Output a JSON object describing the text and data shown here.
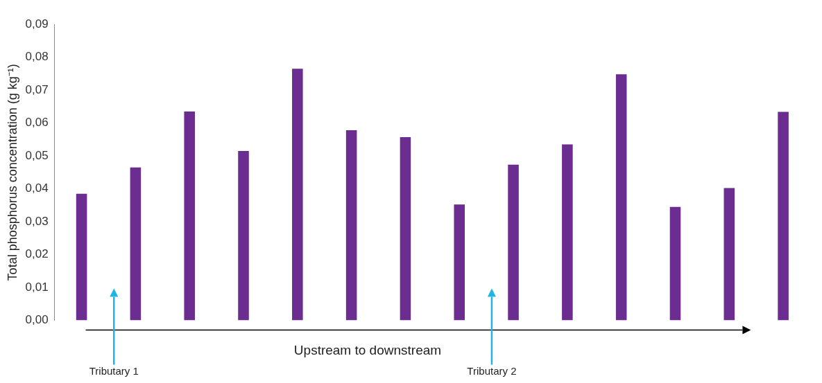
{
  "chart_data": {
    "type": "bar",
    "xlabel": "Upstream to downstream",
    "ylabel": "Total phosphorus concentration (g kg⁻¹)",
    "categories": [
      null,
      null,
      null,
      null,
      null,
      null,
      null,
      null,
      null,
      null,
      null,
      null,
      null,
      null
    ],
    "values": [
      0.0385,
      0.0465,
      0.0635,
      0.0515,
      0.0765,
      0.0578,
      0.0557,
      0.0352,
      0.0473,
      0.0535,
      0.0748,
      0.0345,
      0.0402,
      0.0634
    ],
    "color": "#6b2d8f",
    "ylim": [
      0,
      0.09
    ],
    "yticks": [
      {
        "value": 0,
        "label": "0,00"
      },
      {
        "value": 0.01,
        "label": "0,01"
      },
      {
        "value": 0.02,
        "label": "0,02"
      },
      {
        "value": 0.03,
        "label": "0,03"
      },
      {
        "value": 0.04,
        "label": "0,04"
      },
      {
        "value": 0.05,
        "label": "0,05"
      },
      {
        "value": 0.06,
        "label": "0,06"
      },
      {
        "value": 0.07,
        "label": "0,07"
      },
      {
        "value": 0.08,
        "label": "0,08"
      },
      {
        "value": 0.09,
        "label": "0,09"
      }
    ],
    "grid": false,
    "legend": false,
    "annotations": [
      "Tributary 1",
      "Tributary 2"
    ]
  }
}
